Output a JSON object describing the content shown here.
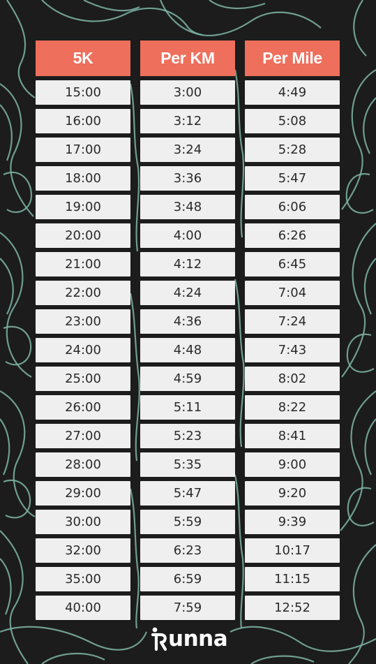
{
  "table": {
    "headers": [
      "5K",
      "Per KM",
      "Per Mile"
    ],
    "rows": [
      [
        "15:00",
        "3:00",
        "4:49"
      ],
      [
        "16:00",
        "3:12",
        "5:08"
      ],
      [
        "17:00",
        "3:24",
        "5:28"
      ],
      [
        "18:00",
        "3:36",
        "5:47"
      ],
      [
        "19:00",
        "3:48",
        "6:06"
      ],
      [
        "20:00",
        "4:00",
        "6:26"
      ],
      [
        "21:00",
        "4:12",
        "6:45"
      ],
      [
        "22:00",
        "4:24",
        "7:04"
      ],
      [
        "23:00",
        "4:36",
        "7:24"
      ],
      [
        "24:00",
        "4:48",
        "7:43"
      ],
      [
        "25:00",
        "4:59",
        "8:02"
      ],
      [
        "26:00",
        "5:11",
        "8:22"
      ],
      [
        "27:00",
        "5:23",
        "8:41"
      ],
      [
        "28:00",
        "5:35",
        "9:00"
      ],
      [
        "29:00",
        "5:47",
        "9:20"
      ],
      [
        "30:00",
        "5:59",
        "9:39"
      ],
      [
        "32:00",
        "6:23",
        "10:17"
      ],
      [
        "35:00",
        "6:59",
        "11:15"
      ],
      [
        "40:00",
        "7:59",
        "12:52"
      ]
    ]
  },
  "brand": {
    "logo_text": "unna"
  },
  "colors": {
    "background": "#1c1c1c",
    "header": "#ee6f5b",
    "cell": "#efefef",
    "contour": "#7fb5a6"
  }
}
